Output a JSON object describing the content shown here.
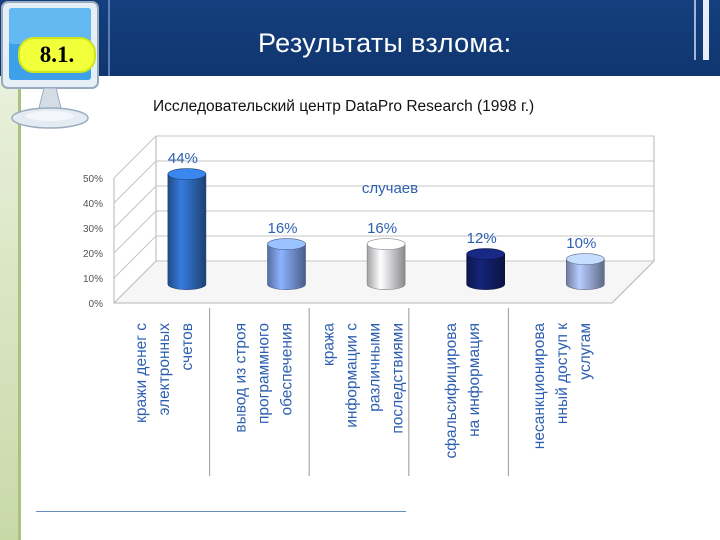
{
  "header": {
    "section_number": "8.1.",
    "title": "Результаты взлома:"
  },
  "subtitle": "Исследовательский центр DataPro Research (1998 г.)",
  "colors": {
    "header_bg": "#143f7e",
    "badge_bg": "#f2ff3b",
    "bar_1": "#2f6cc0",
    "bar_2": "#7b9be6",
    "bar_3": "#e4e6ec",
    "bar_4": "#12206a",
    "bar_5": "#9fb1e0"
  },
  "chart_data": {
    "type": "bar",
    "series": [
      {
        "name": "случаев",
        "values": [
          44,
          16,
          16,
          12,
          10
        ]
      }
    ],
    "categories": [
      "кражи денег с электронных счетов",
      "вывод из строя программного обеспечения",
      "кража информации с различными последствиями",
      "сфальсифицирова на информация",
      "несанкционирова нный доступ к услугам"
    ],
    "category_lines": [
      [
        "кражи денег с",
        "электронных",
        "счетов"
      ],
      [
        "вывод из строя",
        "программного",
        "обеспечения"
      ],
      [
        "кража",
        "информации с",
        "различными",
        "последствиями"
      ],
      [
        "сфальсифицирова",
        "на информация"
      ],
      [
        "несанкционирова",
        "нный доступ к",
        "услугам"
      ]
    ],
    "data_labels": [
      "44%",
      "16%",
      "16%",
      "12%",
      "10%"
    ],
    "y_ticks": [
      "0%",
      "10%",
      "20%",
      "30%",
      "40%",
      "50%"
    ],
    "ylim": [
      0,
      50
    ],
    "grid": true,
    "legend": "top-center",
    "style": "3d-cylinder"
  }
}
